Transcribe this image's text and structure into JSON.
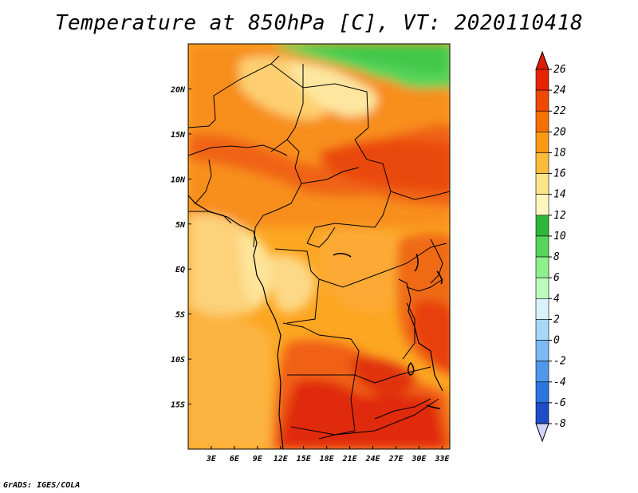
{
  "title": "Temperature at 850hPa [C], VT: 2020110418",
  "credit": "GrADS: IGES/COLA",
  "map": {
    "projection": "latlon",
    "lon_range": [
      0,
      34
    ],
    "lat_range": [
      -20,
      25
    ],
    "lon_ticks": [
      {
        "value": 3,
        "label": "3E"
      },
      {
        "value": 6,
        "label": "6E"
      },
      {
        "value": 9,
        "label": "9E"
      },
      {
        "value": 12,
        "label": "12E"
      },
      {
        "value": 15,
        "label": "15E"
      },
      {
        "value": 18,
        "label": "18E"
      },
      {
        "value": 21,
        "label": "21E"
      },
      {
        "value": 24,
        "label": "24E"
      },
      {
        "value": 27,
        "label": "27E"
      },
      {
        "value": 30,
        "label": "30E"
      },
      {
        "value": 33,
        "label": "33E"
      }
    ],
    "lat_ticks": [
      {
        "value": 20,
        "label": "20N"
      },
      {
        "value": 15,
        "label": "15N"
      },
      {
        "value": 10,
        "label": "10N"
      },
      {
        "value": 5,
        "label": "5N"
      },
      {
        "value": 0,
        "label": "EQ"
      },
      {
        "value": -5,
        "label": "5S"
      },
      {
        "value": -10,
        "label": "10S"
      },
      {
        "value": -15,
        "label": "15S"
      }
    ],
    "field": "temperature_850hPa",
    "units": "C"
  },
  "colorbar": {
    "levels": [
      26,
      24,
      22,
      20,
      18,
      16,
      14,
      12,
      10,
      8,
      6,
      4,
      2,
      0,
      -2,
      -4,
      -6,
      -8
    ],
    "colors": [
      "#e82400",
      "#f04a00",
      "#f87000",
      "#fc9a16",
      "#fdbb3a",
      "#fde48a",
      "#fff6be",
      "#2fb73a",
      "#58d45a",
      "#8ef08a",
      "#bdfbbd",
      "#d8f2fc",
      "#a6d8f8",
      "#7bbaf2",
      "#4f98ea",
      "#2c74e0",
      "#1e4cc8",
      "#0c2098",
      "#cfd4f8"
    ],
    "top_cap_color": "#e01c00",
    "bottom_cap_color": "#cfd4f8"
  }
}
